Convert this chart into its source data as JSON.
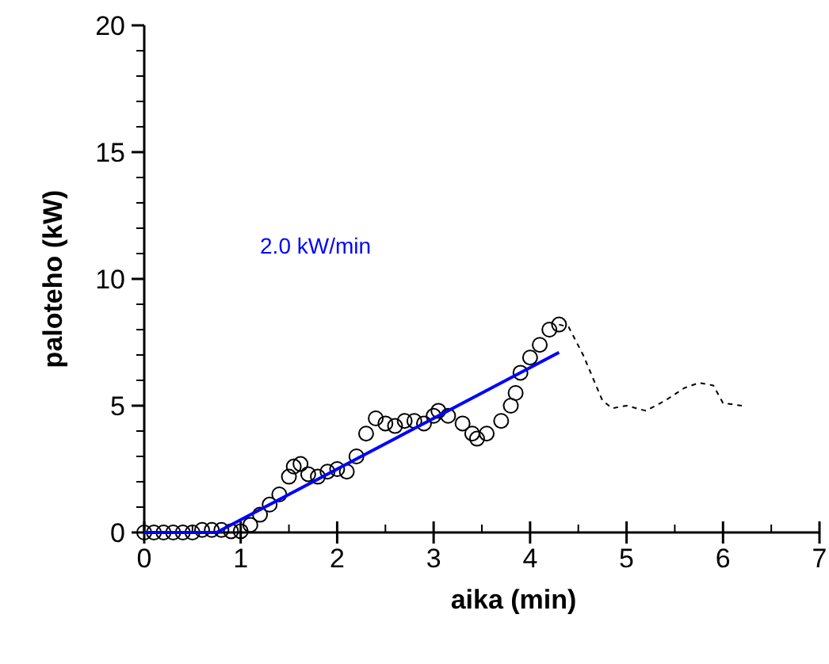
{
  "chart_data": {
    "type": "scatter",
    "xlabel": "aika (min)",
    "ylabel": "paloteho (kW)",
    "xlim": [
      0,
      7
    ],
    "ylim": [
      0,
      20
    ],
    "xticks": [
      0,
      {
        "value": 0.5,
        "label": null
      },
      1,
      {
        "value": 1.5,
        "label": null
      },
      2,
      {
        "value": 2.5,
        "label": null
      },
      3,
      {
        "value": 3.5,
        "label": null
      },
      4,
      {
        "value": 4.5,
        "label": null
      },
      5,
      {
        "value": 5.5,
        "label": null
      },
      6,
      {
        "value": 6.5,
        "label": null
      },
      7
    ],
    "yticks": [
      0,
      {
        "value": 1,
        "label": null
      },
      {
        "value": 2,
        "label": null
      },
      {
        "value": 3,
        "label": null
      },
      {
        "value": 4,
        "label": null
      },
      5,
      {
        "value": 6,
        "label": null
      },
      {
        "value": 7,
        "label": null
      },
      {
        "value": 8,
        "label": null
      },
      {
        "value": 9,
        "label": null
      },
      10,
      {
        "value": 11,
        "label": null
      },
      {
        "value": 12,
        "label": null
      },
      {
        "value": 13,
        "label": null
      },
      {
        "value": 14,
        "label": null
      },
      15,
      {
        "value": 16,
        "label": null
      },
      {
        "value": 17,
        "label": null
      },
      {
        "value": 18,
        "label": null
      },
      {
        "value": 19,
        "label": null
      },
      20
    ],
    "grid": false,
    "annotations": [
      "2.0 kW/min"
    ],
    "series": [
      {
        "color": "#000000",
        "marker": "circle",
        "x": [
          0,
          0.1,
          0.2,
          0.3,
          0.4,
          0.5,
          0.6,
          0.7,
          0.8,
          0.9,
          1.0,
          1.1,
          1.2,
          1.3,
          1.4,
          1.5,
          1.55,
          1.62,
          1.7,
          1.8,
          1.9,
          2.0,
          2.1,
          2.2,
          2.3,
          2.4,
          2.5,
          2.6,
          2.7,
          2.8,
          2.9,
          3.0,
          3.05,
          3.15,
          3.3,
          3.4,
          3.45,
          3.55,
          3.7,
          3.8,
          3.85,
          3.9,
          4.0,
          4.1,
          4.2,
          4.3
        ],
        "values": [
          0,
          0,
          0,
          0,
          0,
          0,
          0.1,
          0.1,
          0.1,
          0.05,
          0.05,
          0.3,
          0.7,
          1.1,
          1.5,
          2.2,
          2.6,
          2.7,
          2.3,
          2.2,
          2.4,
          2.5,
          2.4,
          3.0,
          3.9,
          4.5,
          4.3,
          4.2,
          4.4,
          4.4,
          4.3,
          4.6,
          4.8,
          4.6,
          4.3,
          3.9,
          3.7,
          3.9,
          4.4,
          5.0,
          5.5,
          6.3,
          6.9,
          7.4,
          8.0,
          8.2
        ]
      },
      {
        "type": "line",
        "color": "#000000",
        "marker": "none",
        "line_style": "dashed",
        "x": [
          4.3,
          4.4,
          4.55,
          4.75,
          4.85,
          5.0,
          5.1,
          5.2,
          5.4,
          5.6,
          5.75,
          5.9,
          6.0,
          6.2
        ],
        "values": [
          8.2,
          8.1,
          7.0,
          5.2,
          4.9,
          5.0,
          4.9,
          4.8,
          5.2,
          5.7,
          5.9,
          5.8,
          5.1,
          5.0
        ]
      },
      {
        "type": "line",
        "color": "#0000ff",
        "marker": "none",
        "line_style": "solid",
        "x": [
          0,
          0.75,
          4.3
        ],
        "values": [
          0,
          0,
          7.1
        ]
      }
    ]
  }
}
